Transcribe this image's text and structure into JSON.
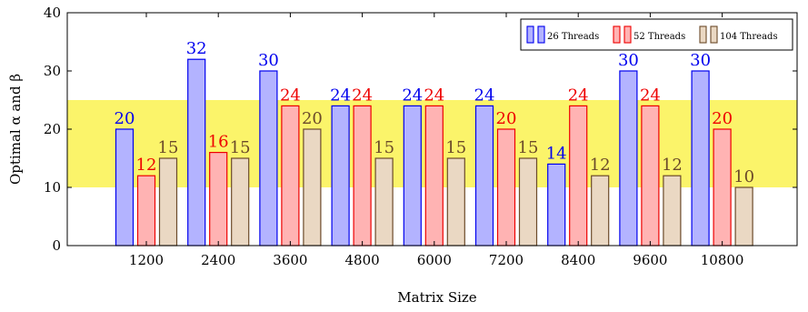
{
  "chart_data": {
    "type": "bar",
    "xlabel": "Matrix Size",
    "ylabel": "Optimal α and β",
    "ylim": [
      0,
      40
    ],
    "yticks": [
      0,
      10,
      20,
      30,
      40
    ],
    "grid": false,
    "legend_position": "top-right",
    "highlight_band": {
      "from": 10,
      "to": 25,
      "color": "#fbf46a"
    },
    "categories": [
      "1200",
      "2400",
      "3600",
      "4800",
      "6000",
      "7200",
      "8400",
      "9600",
      "10800"
    ],
    "series": [
      {
        "name": "26 Threads",
        "values": [
          20,
          32,
          30,
          24,
          24,
          24,
          14,
          30,
          30
        ],
        "fill": "#b3b3ff",
        "stroke": "#0000ee",
        "label_color": "#0000ee"
      },
      {
        "name": "52 Threads",
        "values": [
          12,
          16,
          24,
          24,
          24,
          20,
          24,
          24,
          20
        ],
        "fill": "#ffb3b3",
        "stroke": "#ee0000",
        "label_color": "#ee0000"
      },
      {
        "name": "104 Threads",
        "values": [
          15,
          15,
          20,
          15,
          15,
          15,
          12,
          12,
          10
        ],
        "fill": "#ead8c3",
        "stroke": "#6b4a2a",
        "label_color": "#6b4a2a"
      }
    ]
  }
}
